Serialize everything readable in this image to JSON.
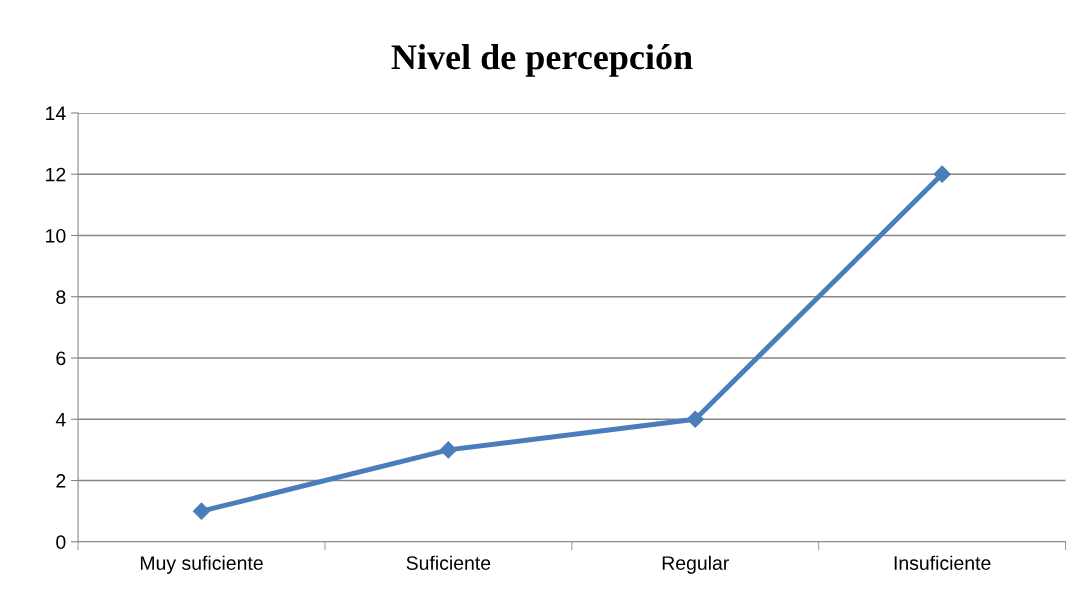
{
  "chart_data": {
    "type": "line",
    "title": "Nivel de percepción",
    "categories": [
      "Muy suficiente",
      "Suficiente",
      "Regular",
      "Insuficiente"
    ],
    "series": [
      {
        "color": "#4a7ebb",
        "values": [
          1,
          3,
          4,
          12
        ]
      }
    ],
    "ylim": [
      0,
      14
    ],
    "yticks": [
      0,
      2,
      4,
      6,
      8,
      10,
      12,
      14
    ],
    "grid": "y",
    "marker": "diamond",
    "line_style": "solid"
  }
}
